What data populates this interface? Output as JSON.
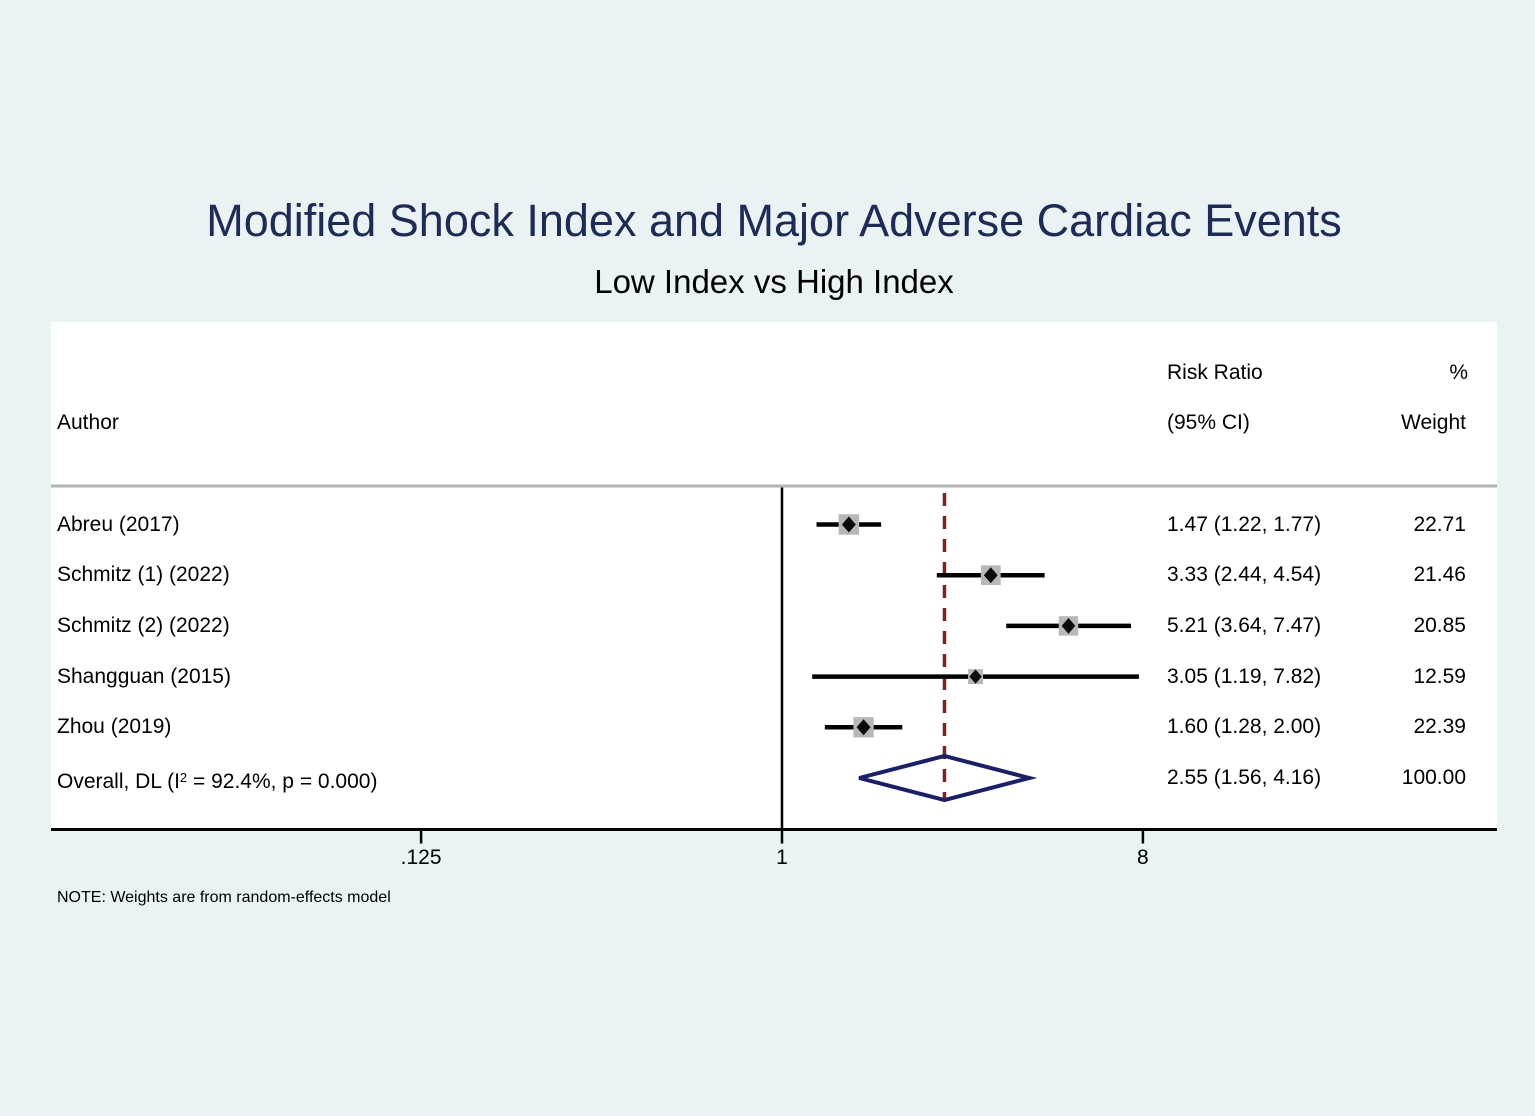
{
  "title": "Modified Shock Index and Major Adverse Cardiac Events",
  "subtitle": "Low Index vs High Index",
  "header": {
    "author": "Author",
    "effect_line1": "Risk Ratio",
    "effect_line2": "(95% CI)",
    "weight_line1": "%",
    "weight_line2": "Weight"
  },
  "note": "NOTE: Weights are from random-effects model",
  "colors": {
    "background": "#eaf2f3",
    "plot_background": "#ffffff",
    "title": "#1e2b55",
    "text": "#000000",
    "ci_line": "#000000",
    "marker": "#0a0a0a",
    "weight_box": "#b8b8b8",
    "reference_line": "#000000",
    "overall_dashed_line": "#7e2222",
    "diamond": "#1b2066",
    "separator": "#b3b3b3",
    "axis": "#000000"
  },
  "chart_data": {
    "type": "forest",
    "effect_measure": "Risk Ratio",
    "x_scale": "log",
    "x_ticks": [
      0.125,
      1,
      8
    ],
    "x_tick_labels": [
      ".125",
      "1",
      "8"
    ],
    "reference_value": 1,
    "overall_dashed_at": 2.55,
    "studies": [
      {
        "author": "Abreu (2017)",
        "estimate": 1.47,
        "ci_low": 1.22,
        "ci_high": 1.77,
        "effect_label": "1.47 (1.22, 1.77)",
        "weight": 22.71,
        "weight_label": "22.71"
      },
      {
        "author": "Schmitz (1) (2022)",
        "estimate": 3.33,
        "ci_low": 2.44,
        "ci_high": 4.54,
        "effect_label": "3.33 (2.44, 4.54)",
        "weight": 21.46,
        "weight_label": "21.46"
      },
      {
        "author": "Schmitz (2) (2022)",
        "estimate": 5.21,
        "ci_low": 3.64,
        "ci_high": 7.47,
        "effect_label": "5.21 (3.64, 7.47)",
        "weight": 20.85,
        "weight_label": "20.85"
      },
      {
        "author": "Shangguan (2015)",
        "estimate": 3.05,
        "ci_low": 1.19,
        "ci_high": 7.82,
        "effect_label": "3.05 (1.19, 7.82)",
        "weight": 12.59,
        "weight_label": "12.59"
      },
      {
        "author": "Zhou (2019)",
        "estimate": 1.6,
        "ci_low": 1.28,
        "ci_high": 2.0,
        "effect_label": "1.60 (1.28, 2.00)",
        "weight": 22.39,
        "weight_label": "22.39"
      }
    ],
    "overall": {
      "label_pre": "Overall, DL (I",
      "label_sup": "2",
      "label_post": " = 92.4%, p = 0.000)",
      "estimate": 2.55,
      "ci_low": 1.56,
      "ci_high": 4.16,
      "effect_label": "2.55 (1.56, 4.16)",
      "weight_label": "100.00",
      "heterogeneity_I2": "92.4%",
      "heterogeneity_p": "0.000"
    }
  }
}
